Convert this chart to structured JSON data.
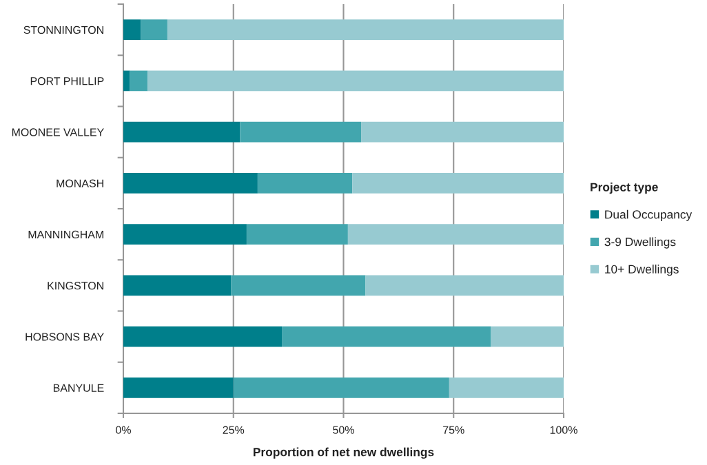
{
  "chart_data": {
    "type": "bar",
    "orientation": "horizontal",
    "stacked": true,
    "xlabel": "Proportion of net new dwellings",
    "legend_title": "Project type",
    "categories": [
      "STONNINGTON",
      "PORT PHILLIP",
      "MOONEE VALLEY",
      "MONASH",
      "MANNINGHAM",
      "KINGSTON",
      "HOBSONS BAY",
      "BANYULE"
    ],
    "series": [
      {
        "name": "Dual Occupancy",
        "color": "#007f8b",
        "values": [
          4,
          1.5,
          26.5,
          30.5,
          28,
          24.5,
          36,
          25
        ]
      },
      {
        "name": "3-9 Dwellings",
        "color": "#42a6ae",
        "values": [
          6,
          4,
          27.5,
          21.5,
          23,
          30.5,
          47.5,
          49
        ]
      },
      {
        "name": "10+ Dwellings",
        "color": "#97cad1",
        "values": [
          90,
          94.5,
          46,
          48,
          49,
          45,
          16.5,
          26
        ]
      }
    ],
    "xlim": [
      0,
      100
    ],
    "xticks": [
      {
        "value": 0,
        "label": "0%"
      },
      {
        "value": 25,
        "label": "25%"
      },
      {
        "value": 50,
        "label": "50%"
      },
      {
        "value": 75,
        "label": "75%"
      },
      {
        "value": 100,
        "label": "100%"
      }
    ],
    "grid": "x",
    "legend": "right"
  }
}
